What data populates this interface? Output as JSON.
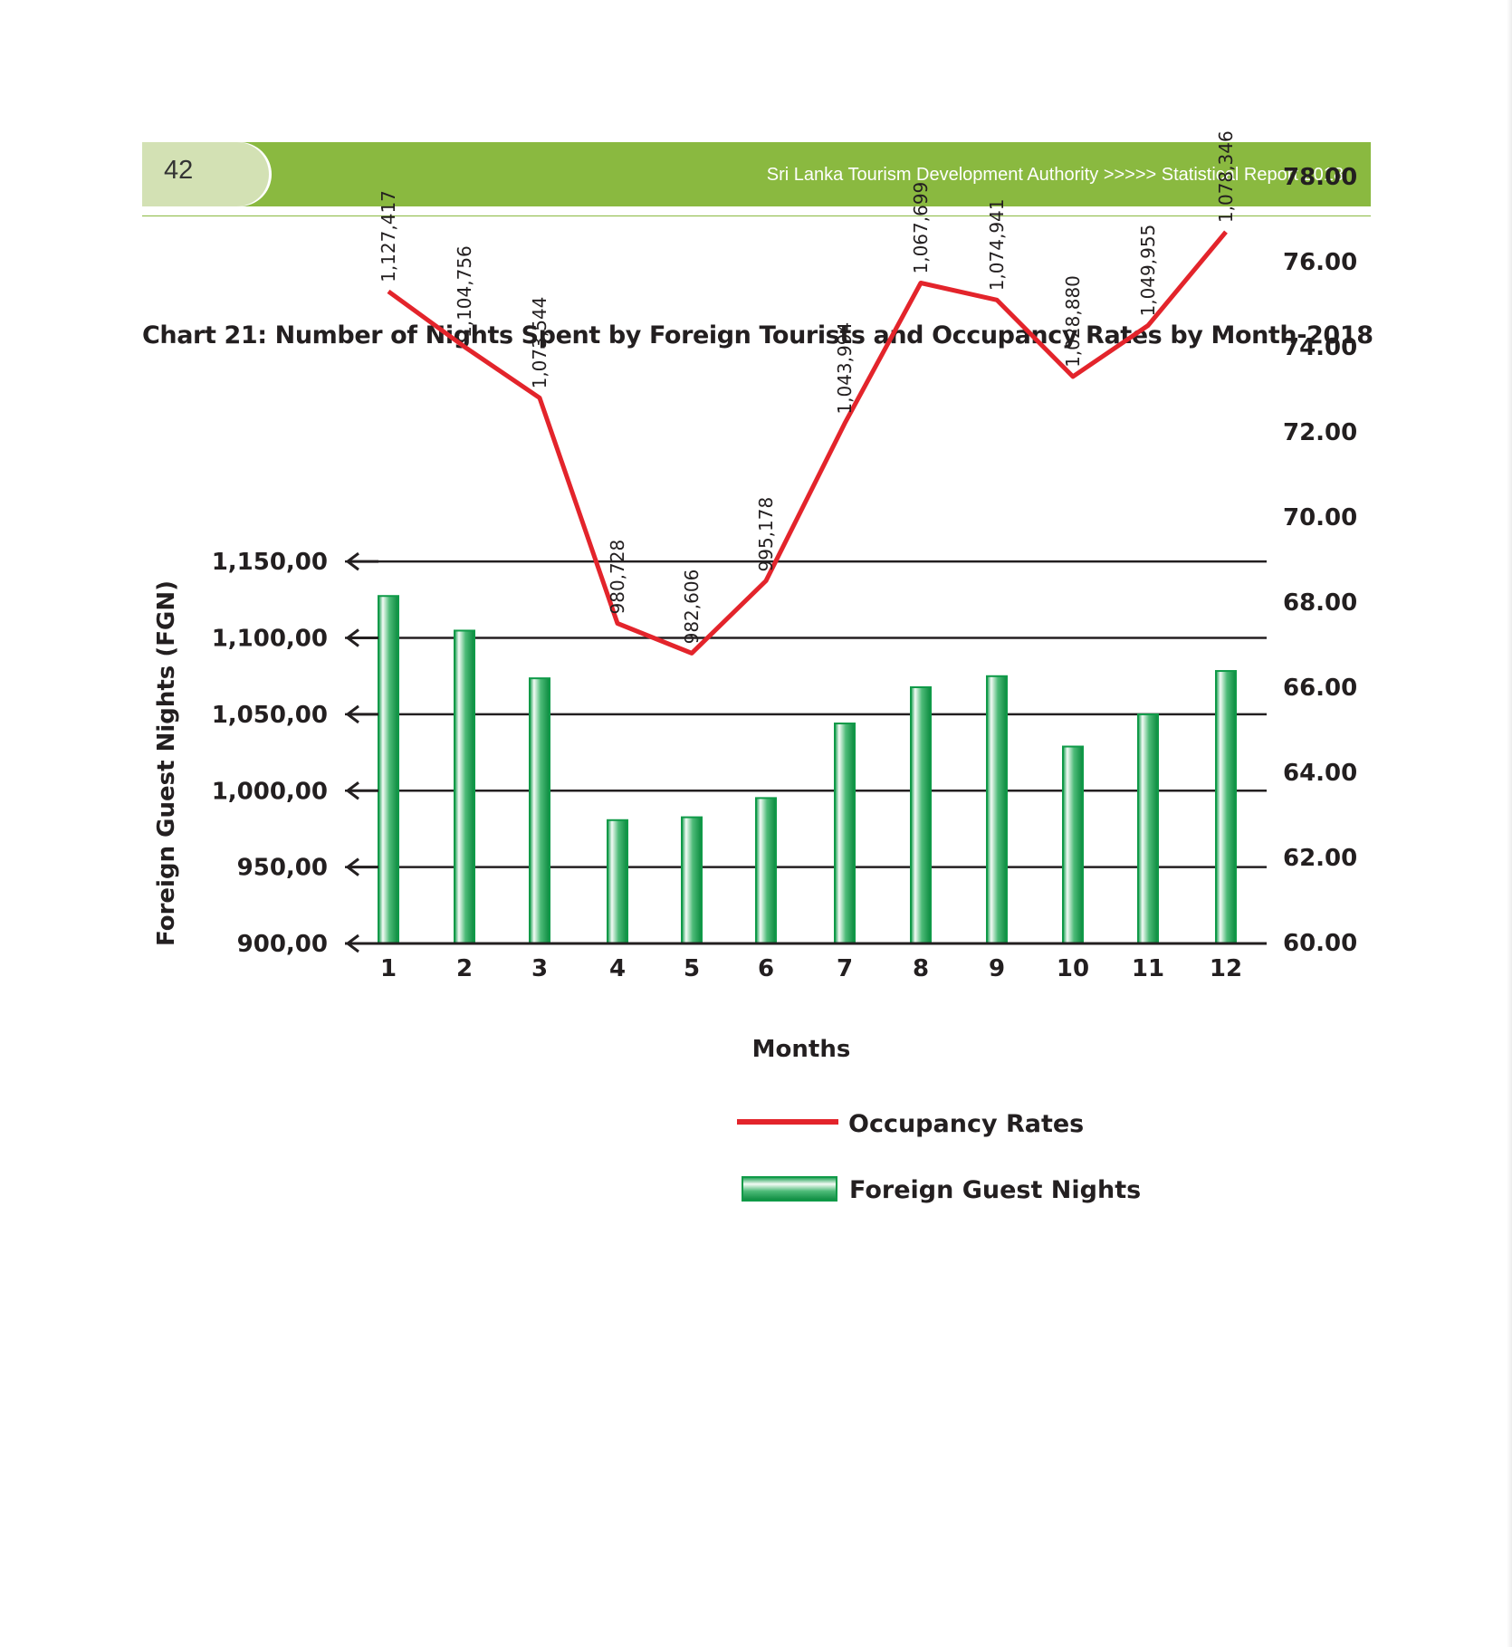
{
  "header": {
    "page_number": "42",
    "running_title": "Sri Lanka Tourism Development Authority >>>>> Statistical Report 2018"
  },
  "colors": {
    "header_green": "#8ab940",
    "tab_green": "#d3e1b4",
    "bar_green": "#0f9a48",
    "line_red": "#e3242b"
  },
  "chart_data": {
    "type": "bar",
    "title": "Chart 21:  Number of Nights Spent by Foreign Tourists and Occupancy Rates by Month-2018",
    "xlabel": "Months",
    "ylabel": "Foreign Guest Nights (FGN)",
    "categories": [
      "1",
      "2",
      "3",
      "4",
      "5",
      "6",
      "7",
      "8",
      "9",
      "10",
      "11",
      "12"
    ],
    "left_axis": {
      "ticks": [
        "900,00",
        "950,00",
        "1,000,00",
        "1,050,00",
        "1,100,00",
        "1,150,00"
      ],
      "tick_values": [
        900000,
        950000,
        1000000,
        1050000,
        1100000,
        1150000
      ],
      "ylim": [
        900000,
        1150000
      ]
    },
    "right_axis": {
      "ticks": [
        "60.00",
        "62.00",
        "64.00",
        "66.00",
        "68.00",
        "70.00",
        "72.00",
        "74.00",
        "76.00",
        "78.00"
      ],
      "tick_values": [
        60,
        62,
        64,
        66,
        68,
        70,
        72,
        74,
        76,
        78
      ],
      "ylim": [
        60,
        78
      ]
    },
    "grid": true,
    "legend_position": "bottom",
    "series": [
      {
        "name": "Foreign Guest Nights",
        "type": "bar",
        "axis": "left",
        "values": [
          1127417,
          1104756,
          1073544,
          980728,
          982606,
          995178,
          1043994,
          1067699,
          1074941,
          1028880,
          1049955,
          1078346
        ],
        "labels": [
          "1,127,417",
          "1,104,756",
          "1,073,544",
          "980,728",
          "982,606",
          "995,178",
          "1,043,994",
          "1,067,699",
          "1,074,941",
          "1,028,880",
          "1,049,955",
          "1,078,346"
        ]
      },
      {
        "name": "Occupancy Rates",
        "type": "line",
        "axis": "right",
        "values": [
          75.3,
          74.0,
          72.8,
          67.5,
          66.8,
          68.5,
          72.2,
          75.5,
          75.1,
          73.3,
          74.5,
          76.7
        ]
      }
    ]
  }
}
